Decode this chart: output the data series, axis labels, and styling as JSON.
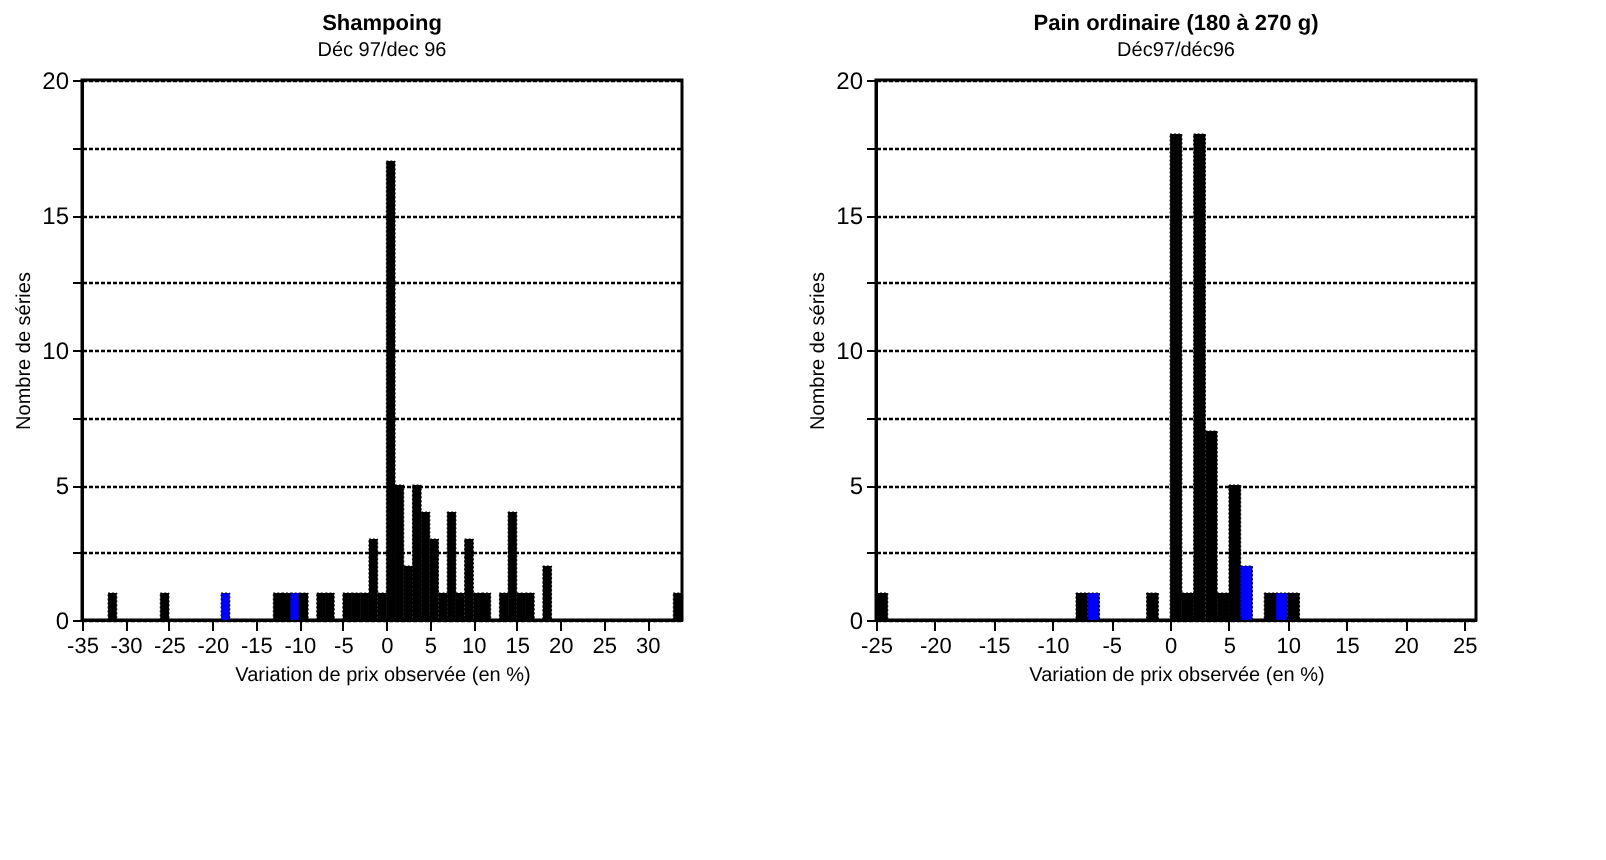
{
  "chart_data": [
    {
      "type": "histogram",
      "title": "Shampoing",
      "subtitle": "Déc 97/dec 96",
      "xlabel": "Variation de prix observée (en %)",
      "ylabel": "Nombre de séries",
      "bins": [
        -35,
        -34,
        -33,
        -32,
        -31,
        -30,
        -29,
        -28,
        -27,
        -26,
        -25,
        -24,
        -23,
        -22,
        -21,
        -20,
        -19,
        -18,
        -17,
        -16,
        -15,
        -14,
        -13,
        -12,
        -11,
        -10,
        -9,
        -8,
        -7,
        -6,
        -5,
        -4,
        -3,
        -2,
        -1,
        0,
        1,
        2,
        3,
        4,
        5,
        6,
        7,
        8,
        9,
        10,
        11,
        12,
        13,
        14,
        15,
        16,
        17,
        18,
        19,
        20,
        21,
        22,
        23,
        24,
        25,
        26,
        27,
        28,
        29,
        30,
        31,
        32,
        33,
        34
      ],
      "values": [
        0,
        0,
        0,
        1,
        0,
        0,
        0,
        0,
        0,
        1,
        0,
        0,
        0,
        0,
        0,
        0,
        1,
        0,
        0,
        0,
        0,
        0,
        1,
        1,
        1,
        1,
        0,
        1,
        1,
        0,
        1,
        1,
        1,
        3,
        1,
        17,
        5,
        2,
        5,
        4,
        3,
        1,
        4,
        1,
        3,
        1,
        1,
        0,
        1,
        4,
        1,
        1,
        0,
        2,
        0,
        0,
        0,
        0,
        0,
        0,
        0,
        0,
        0,
        0,
        0,
        0,
        0,
        0,
        1
      ],
      "colors": [
        "#000000",
        "#000000",
        "#000000",
        "#000000",
        "#000000",
        "#000000",
        "#000000",
        "#000000",
        "#000000",
        "#000000",
        "#000000",
        "#000000",
        "#000000",
        "#000000",
        "#000000",
        "#000000",
        "#0000ff",
        "#000000",
        "#000000",
        "#000000",
        "#000000",
        "#000000",
        "#000000",
        "#000000",
        "#0000ff",
        "#000000",
        "#000000",
        "#000000",
        "#000000",
        "#000000",
        "#000000",
        "#000000",
        "#000000",
        "#000000",
        "#000000",
        "#000000",
        "#000000",
        "#000000",
        "#000000",
        "#000000",
        "#000000",
        "#000000",
        "#000000",
        "#000000",
        "#000000",
        "#000000",
        "#000000",
        "#000000",
        "#000000",
        "#000000",
        "#000000",
        "#000000",
        "#000000",
        "#000000",
        "#000000",
        "#000000",
        "#000000",
        "#000000",
        "#000000",
        "#000000",
        "#000000",
        "#000000",
        "#000000",
        "#000000",
        "#000000",
        "#000000",
        "#000000",
        "#000000",
        "#000000"
      ],
      "xlim": [
        -35,
        34
      ],
      "xticks": [
        -35,
        -30,
        -25,
        -20,
        -15,
        -10,
        -5,
        0,
        5,
        10,
        15,
        20,
        25,
        30
      ],
      "ylim": [
        0,
        20
      ],
      "yticks": [
        0,
        {
          "value": 2.5,
          "label": null
        },
        5,
        {
          "value": 7.5,
          "label": null
        },
        10,
        {
          "value": 12.5,
          "label": null
        },
        15,
        {
          "value": 17.5,
          "label": null
        },
        20
      ],
      "grid": "y"
    },
    {
      "type": "histogram",
      "title": "Pain ordinaire  (180 à 270 g)",
      "subtitle": "Déc97/déc96",
      "xlabel": "Variation de prix observée (en %)",
      "ylabel": "Nombre de séries",
      "bins": [
        -25,
        -24,
        -23,
        -22,
        -21,
        -20,
        -19,
        -18,
        -17,
        -16,
        -15,
        -14,
        -13,
        -12,
        -11,
        -10,
        -9,
        -8,
        -7,
        -6,
        -5,
        -4,
        -3,
        -2,
        -1,
        0,
        1,
        2,
        3,
        4,
        5,
        6,
        7,
        8,
        9,
        10,
        11,
        12,
        13,
        14,
        15,
        16,
        17,
        18,
        19,
        20,
        21,
        22,
        23,
        24,
        25,
        26
      ],
      "values": [
        1,
        0,
        0,
        0,
        0,
        0,
        0,
        0,
        0,
        0,
        0,
        0,
        0,
        0,
        0,
        0,
        0,
        1,
        1,
        0,
        0,
        0,
        0,
        1,
        0,
        18,
        1,
        18,
        7,
        1,
        5,
        2,
        0,
        1,
        1,
        1,
        0,
        0,
        0,
        0,
        0,
        0,
        0,
        0,
        0,
        0,
        0,
        0,
        0,
        0,
        0
      ],
      "colors": [
        "#000000",
        "#000000",
        "#000000",
        "#000000",
        "#000000",
        "#000000",
        "#000000",
        "#000000",
        "#000000",
        "#000000",
        "#000000",
        "#000000",
        "#000000",
        "#000000",
        "#000000",
        "#000000",
        "#000000",
        "#000000",
        "#0000ff",
        "#000000",
        "#000000",
        "#000000",
        "#000000",
        "#000000",
        "#000000",
        "#000000",
        "#000000",
        "#000000",
        "#000000",
        "#000000",
        "#000000",
        "#0000ff",
        "#000000",
        "#000000",
        "#0000ff",
        "#000000",
        "#000000",
        "#000000",
        "#000000",
        "#000000",
        "#000000",
        "#000000",
        "#000000",
        "#000000",
        "#000000",
        "#000000",
        "#000000",
        "#000000",
        "#000000",
        "#000000",
        "#000000"
      ],
      "xlim": [
        -25,
        26
      ],
      "xticks": [
        -25,
        -20,
        -15,
        -10,
        -5,
        0,
        5,
        10,
        15,
        20,
        25
      ],
      "ylim": [
        0,
        20
      ],
      "yticks": [
        0,
        {
          "value": 2.5,
          "label": null
        },
        5,
        {
          "value": 7.5,
          "label": null
        },
        10,
        {
          "value": 12.5,
          "label": null
        },
        15,
        {
          "value": 17.5,
          "label": null
        },
        20
      ],
      "grid": "y"
    }
  ]
}
